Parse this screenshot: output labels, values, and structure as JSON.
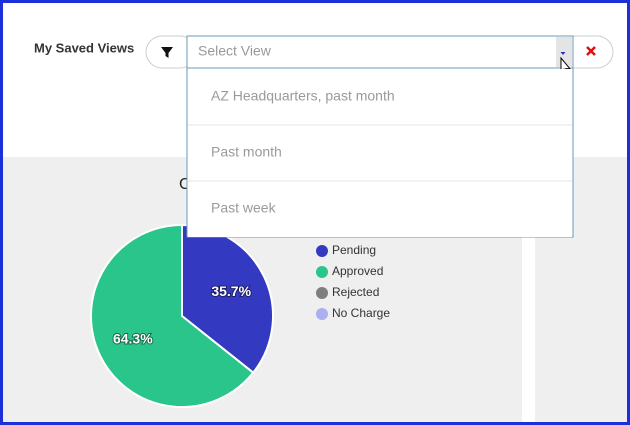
{
  "header": {
    "label": "My Saved Views",
    "select_placeholder": "Select View"
  },
  "dropdown": {
    "options": [
      "AZ Headquarters, past month",
      "Past month",
      "Past week"
    ]
  },
  "chart_data": {
    "type": "pie",
    "title": "C",
    "categories": [
      "Pending",
      "Approved",
      "Rejected",
      "No Charge"
    ],
    "values": [
      35.7,
      64.3,
      0,
      0
    ],
    "value_labels": [
      "35.7%",
      "64.3%",
      null,
      null
    ],
    "colors": [
      "#3339c0",
      "#2ac58a",
      "#7f7f7f",
      "#abaff0"
    ]
  }
}
